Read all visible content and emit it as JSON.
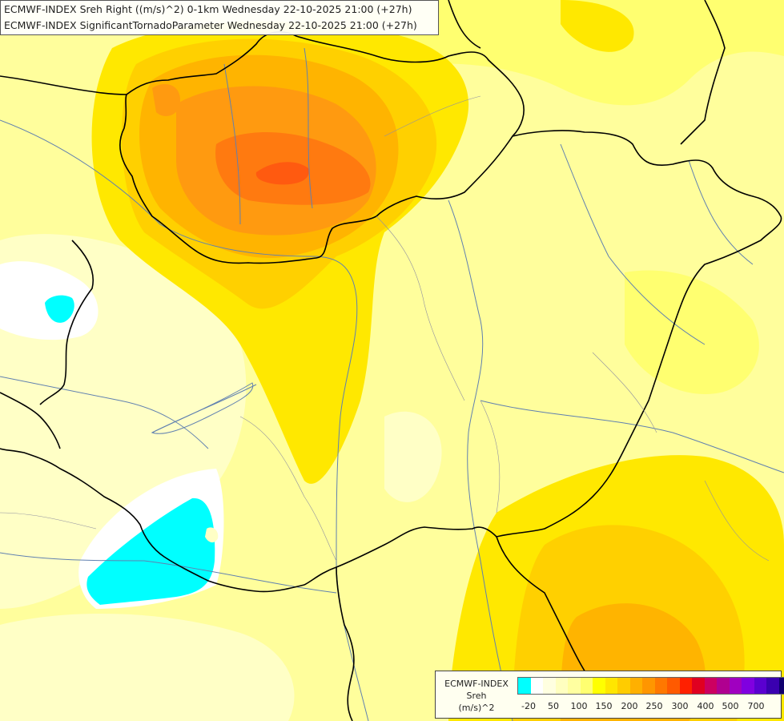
{
  "title": {
    "line1": "ECMWF-INDEX Sreh Right ((m/s)^2) 0-1km Wednesday 22-10-2025 21:00 (+27h)",
    "line2": "ECMWF-INDEX SignificantTornadoParameter Wednesday 22-10-2025 21:00 (+27h)"
  },
  "legend": {
    "title_line1": "ECMWF-INDEX",
    "title_line2": "Sreh",
    "title_line3": "(m/s)^2",
    "colors": [
      "#00ffff",
      "#ffffff",
      "#ffffe0",
      "#ffffc0",
      "#ffffa0",
      "#ffff70",
      "#ffff00",
      "#ffe600",
      "#ffcc00",
      "#ffb000",
      "#ff9600",
      "#ff7800",
      "#ff5a00",
      "#ff2000",
      "#e00020",
      "#cc0060",
      "#b00090",
      "#a000c0",
      "#8000e0",
      "#5a00d0",
      "#3a00b0",
      "#10006e"
    ],
    "ticks": [
      "-20",
      "50",
      "100",
      "150",
      "200",
      "250",
      "300",
      "400",
      "500",
      "700"
    ]
  },
  "map": {
    "colors": {
      "background": "#fffe9c",
      "pale": "#ffffc6",
      "light": "#ffff70",
      "yellow": "#ffe800",
      "gold": "#ffd000",
      "orange_light": "#ffb400",
      "orange": "#ff9a10",
      "orange_dark": "#ff7a10",
      "red_orange": "#ff5a10",
      "white": "#ffffff",
      "cyan": "#00ffff",
      "border": "#000000",
      "river": "#6080b0"
    }
  }
}
